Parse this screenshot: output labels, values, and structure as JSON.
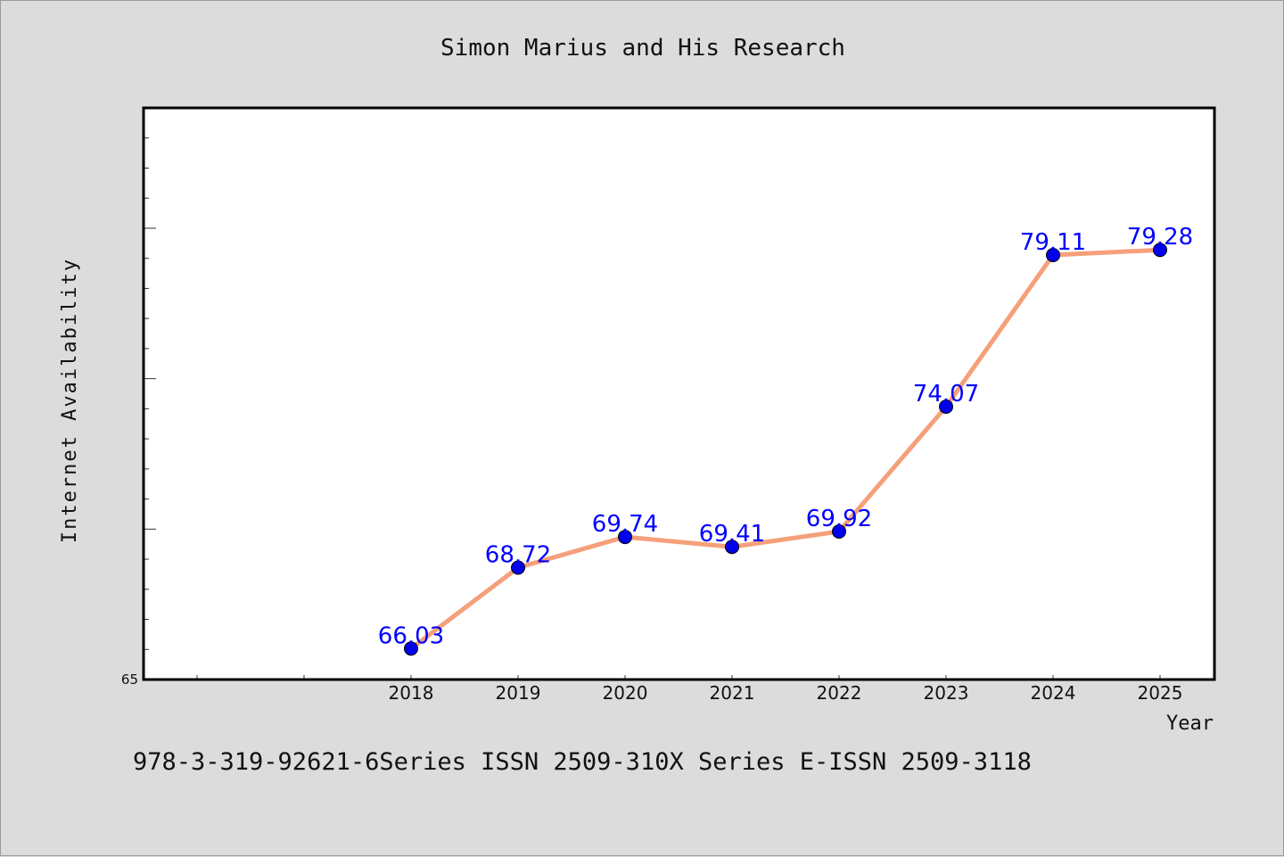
{
  "chart_data": {
    "type": "line",
    "title": "Simon Marius and His Research",
    "xlabel": "Year",
    "ylabel": "Internet Availability",
    "categories": [
      "2018",
      "2019",
      "2020",
      "2021",
      "2022",
      "2023",
      "2024",
      "2025"
    ],
    "series": [
      {
        "values": [
          66.03,
          68.72,
          69.74,
          69.41,
          69.92,
          74.07,
          79.11,
          79.28
        ],
        "labels": [
          "66.03",
          "68.72",
          "69.74",
          "69.41",
          "69.92",
          "74.07",
          "79.11",
          "79.28"
        ],
        "line_color": "#f5a07a",
        "marker_color": "#0000ee"
      }
    ],
    "ylim": [
      65,
      84
    ],
    "y_tick_labels": [
      "65"
    ],
    "grid": false,
    "legend": "none"
  },
  "footer": "978-3-319-92621-6Series ISSN 2509-310X Series E-ISSN 2509-3118",
  "colors": {
    "background": "#dcdcdc",
    "plot_background": "#ffffff",
    "data_label": "#0000ff"
  }
}
